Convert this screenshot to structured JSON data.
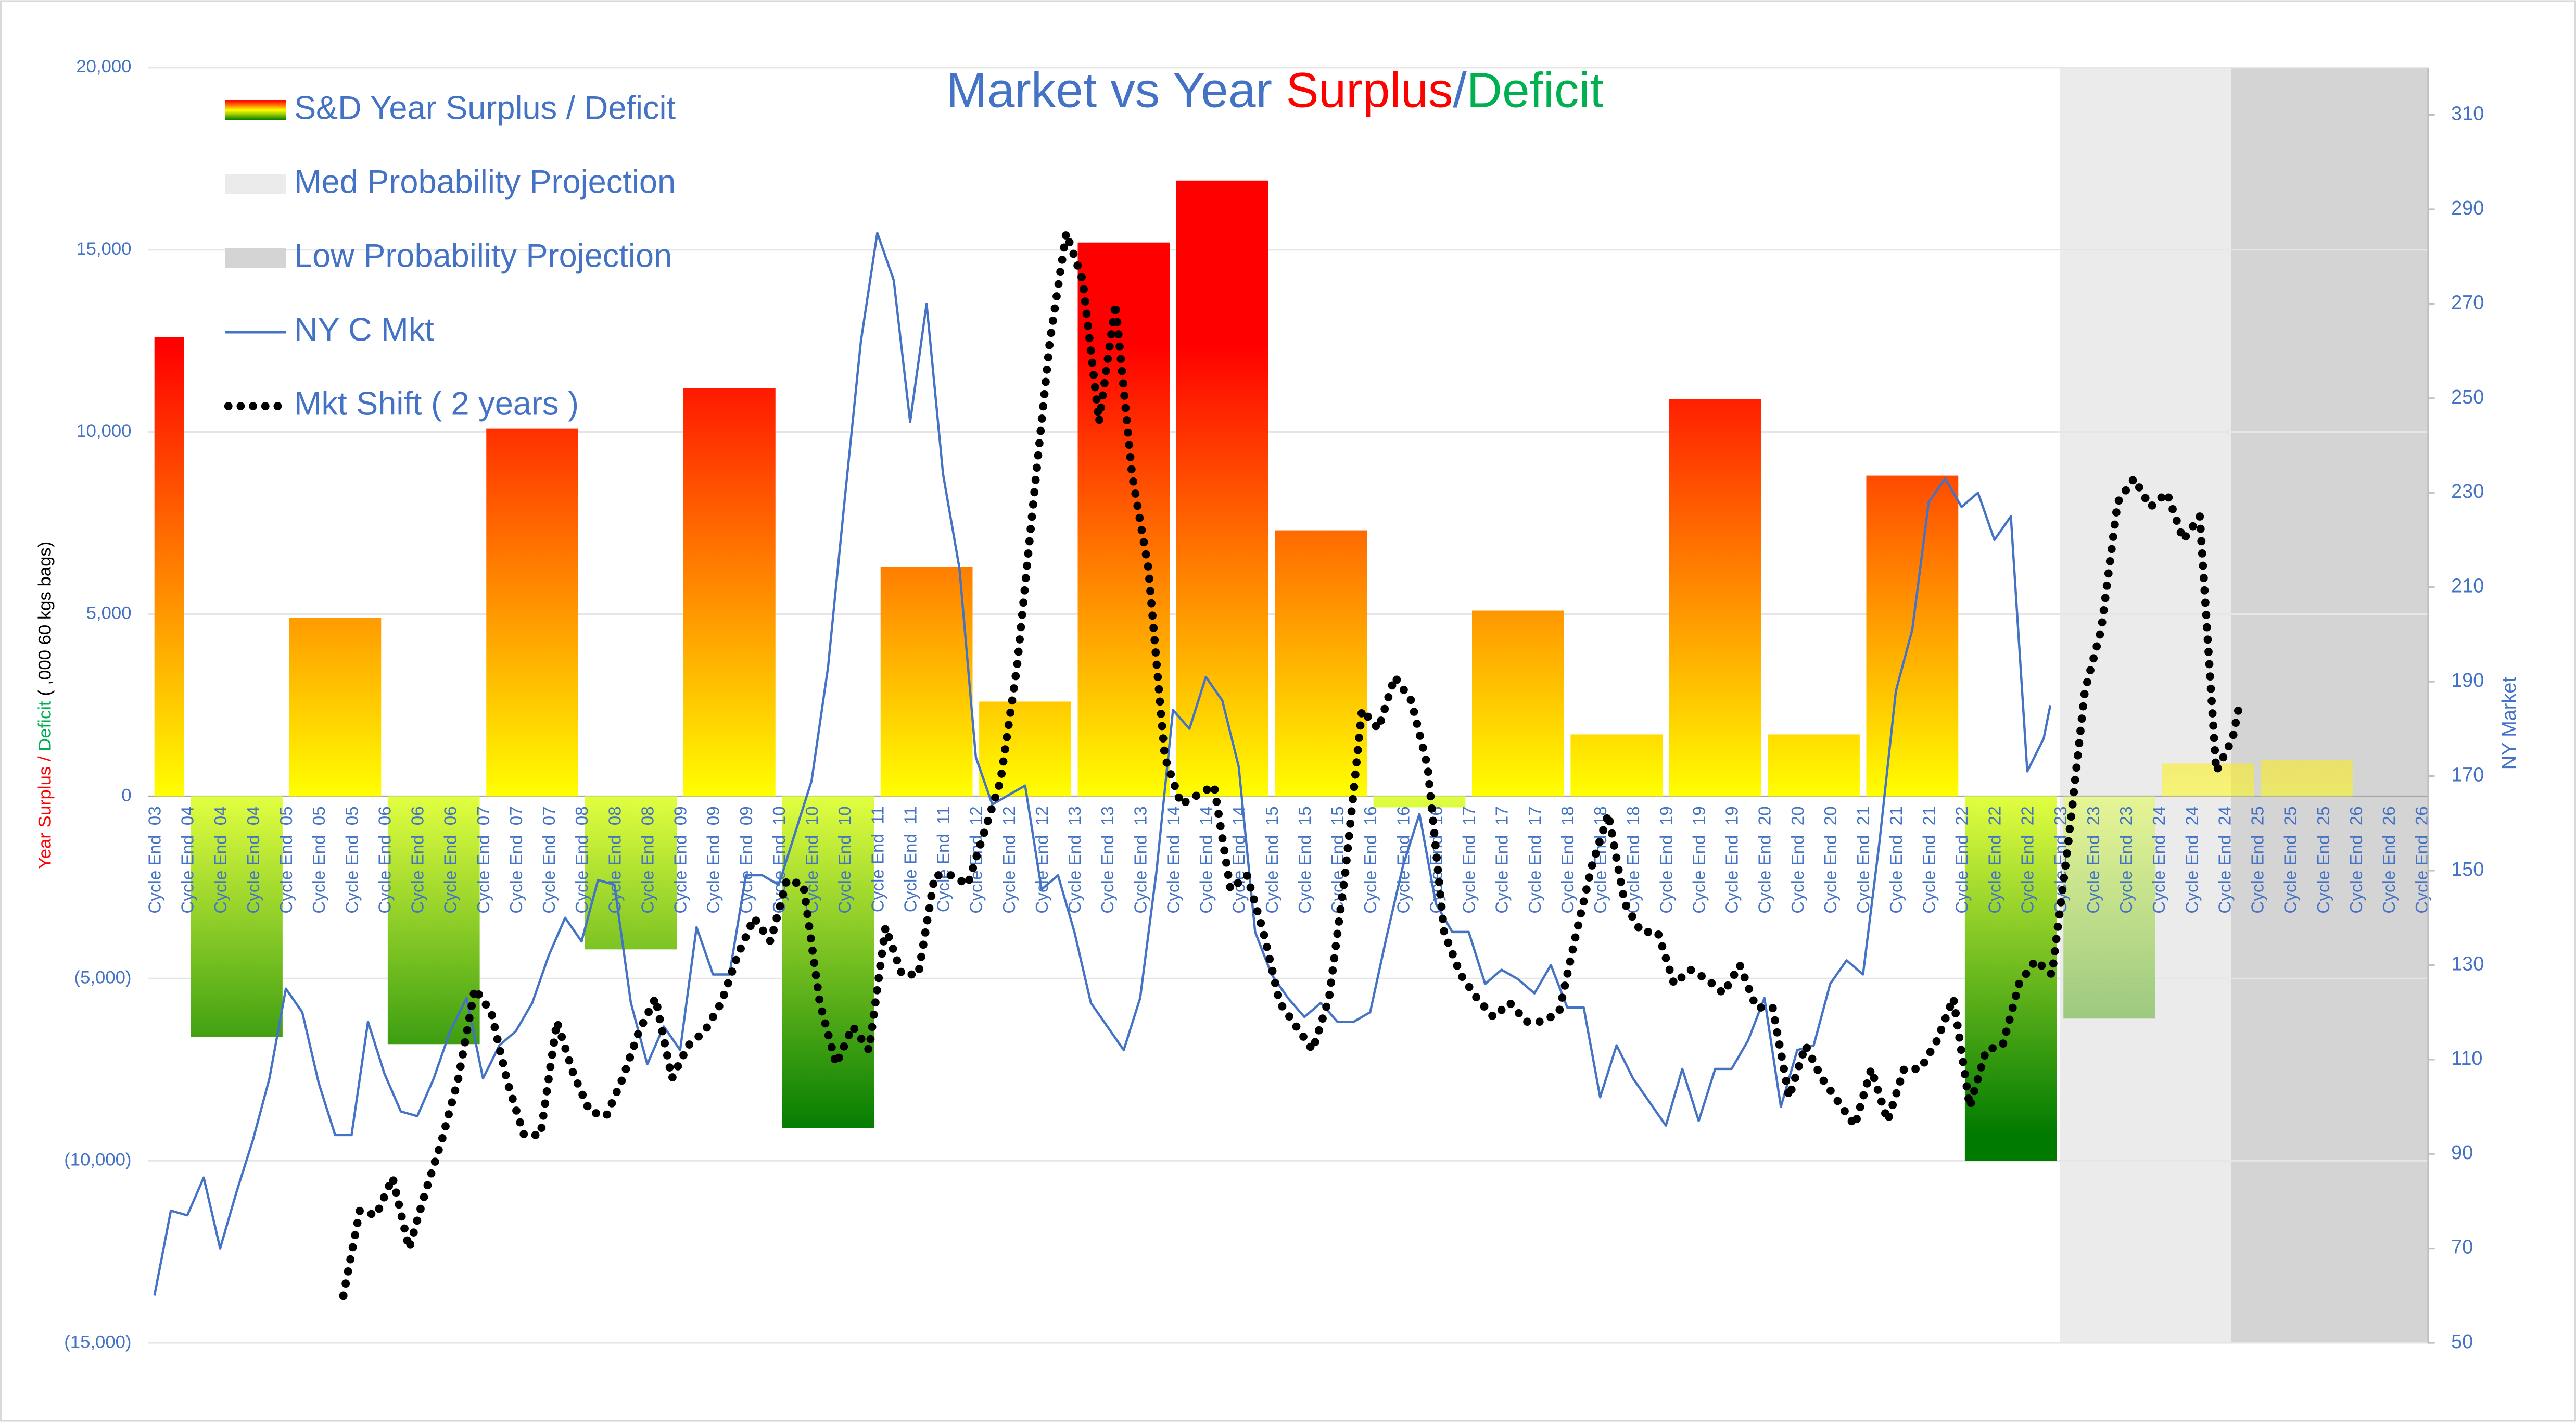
{
  "chart_data": {
    "type": "combo",
    "title_parts": [
      {
        "text": "Market vs Year ",
        "color": "#4472c4"
      },
      {
        "text": "Surplus",
        "color": "#ff0000"
      },
      {
        "text": "/",
        "color": "#4472c4"
      },
      {
        "text": "Deficit",
        "color": "#00b050"
      }
    ],
    "y_label_parts": [
      {
        "text": "Year Surplus / ",
        "color": "#ff0000"
      },
      {
        "text": "Deficit",
        "color": "#00b050"
      },
      {
        "text": " ( ,000 60 kgs bags)",
        "color": "#000000"
      }
    ],
    "y2_label": "NY Market",
    "axis_color": "#4472c4",
    "grid": true,
    "legend": "top-left",
    "categories": [
      "Cycle End  03",
      "Cycle End  04",
      "Cycle End  04",
      "Cycle End  04",
      "Cycle End  05",
      "Cycle End  05",
      "Cycle End  05",
      "Cycle End  06",
      "Cycle End  06",
      "Cycle End  06",
      "Cycle End  07",
      "Cycle End  07",
      "Cycle End  07",
      "Cycle End  08",
      "Cycle End  08",
      "Cycle End  08",
      "Cycle End  09",
      "Cycle End  09",
      "Cycle End  09",
      "Cycle End  10",
      "Cycle End  10",
      "Cycle End  10",
      "Cycle End  11",
      "Cycle End  11",
      "Cycle End  11",
      "Cycle End  12",
      "Cycle End  12",
      "Cycle End  12",
      "Cycle End  13",
      "Cycle End  13",
      "Cycle End  13",
      "Cycle End  14",
      "Cycle End  14",
      "Cycle End  14",
      "Cycle End  15",
      "Cycle End  15",
      "Cycle End  15",
      "Cycle End  16",
      "Cycle End  16",
      "Cycle End  16",
      "Cycle End  17",
      "Cycle End  17",
      "Cycle End  17",
      "Cycle End  18",
      "Cycle End  18",
      "Cycle End  18",
      "Cycle End  19",
      "Cycle End  19",
      "Cycle End  19",
      "Cycle End  20",
      "Cycle End  20",
      "Cycle End  20",
      "Cycle End  21",
      "Cycle End  21",
      "Cycle End  21",
      "Cycle End  22",
      "Cycle End  22",
      "Cycle End  22",
      "Cycle End  23",
      "Cycle End  23",
      "Cycle End  23",
      "Cycle End  24",
      "Cycle End  24",
      "Cycle End  24",
      "Cycle End  25",
      "Cycle End  25",
      "Cycle End  25",
      "Cycle End  26",
      "Cycle End  26",
      "Cycle End  26"
    ],
    "xlim": [
      0,
      69.2
    ],
    "ylim": [
      -15000,
      20000
    ],
    "yticks": [
      {
        "value": -15000,
        "label": "(15,000)"
      },
      {
        "value": -10000,
        "label": "(10,000)"
      },
      {
        "value": -5000,
        "label": "(5,000)"
      },
      0,
      {
        "value": 5000,
        "label": "5,000"
      },
      {
        "value": 10000,
        "label": "10,000"
      },
      {
        "value": 15000,
        "label": "15,000"
      },
      {
        "value": 20000,
        "label": "20,000"
      }
    ],
    "y2lim": [
      50,
      320
    ],
    "y2ticks": [
      50,
      70,
      90,
      110,
      130,
      150,
      170,
      190,
      210,
      230,
      250,
      270,
      290,
      310
    ],
    "bands": [
      {
        "name": "Med Probability Projection",
        "color": "#ebebeb",
        "x": [
          58,
          63.2
        ]
      },
      {
        "name": "Low Probability Projection",
        "color": "#d4d4d4",
        "x": [
          63.2,
          69.2
        ]
      }
    ],
    "bars": {
      "name": "S&D Year Surplus / Deficit",
      "surplus_colors": [
        "#ffff00",
        "#ff0000"
      ],
      "deficit_colors": [
        "#e2ff40",
        "#007a00"
      ],
      "x": [
        [
          0,
          1
        ],
        [
          1,
          4
        ],
        [
          4,
          7
        ],
        [
          7,
          10
        ],
        [
          10,
          13
        ],
        [
          13,
          16
        ],
        [
          16,
          19
        ],
        [
          19,
          22
        ],
        [
          22,
          25
        ],
        [
          25,
          28
        ],
        [
          28,
          31
        ],
        [
          31,
          34
        ],
        [
          34,
          37
        ],
        [
          37,
          40
        ],
        [
          40,
          43
        ],
        [
          43,
          46
        ],
        [
          46,
          49
        ],
        [
          49,
          52
        ],
        [
          52,
          55
        ],
        [
          55,
          58
        ],
        [
          58,
          61
        ],
        [
          61,
          64
        ],
        [
          64,
          67
        ]
      ],
      "values": [
        12600,
        -6600,
        4900,
        -6800,
        10100,
        -4200,
        11200,
        -9100,
        6300,
        2600,
        15200,
        16900,
        7300,
        -300,
        5100,
        1700,
        10900,
        1700,
        8800,
        -10000,
        -6100,
        900,
        1000
      ]
    },
    "series": [
      {
        "name": "NY C Mkt",
        "color": "#4472c4",
        "axis": "y2",
        "style": "line",
        "x": [
          0,
          0.5,
          1,
          1.5,
          2,
          2.5,
          3,
          3.5,
          4,
          4.5,
          5,
          5.5,
          6,
          6.5,
          7,
          7.5,
          8,
          8.5,
          9,
          9.5,
          10,
          10.5,
          11,
          11.5,
          12,
          12.5,
          13,
          13.5,
          14,
          14.5,
          15,
          15.5,
          16,
          16.5,
          17,
          17.5,
          18,
          18.5,
          19,
          19.5,
          20,
          20.5,
          21,
          21.5,
          22,
          22.5,
          23,
          23.5,
          24,
          24.5,
          25,
          25.5,
          26,
          26.5,
          27,
          27.5,
          28,
          28.5,
          29,
          29.5,
          30,
          30.5,
          31,
          31.5,
          32,
          32.5,
          33,
          33.5,
          34,
          34.5,
          35,
          35.5,
          36,
          36.5,
          37,
          37.5,
          38,
          38.5,
          39,
          39.5,
          40,
          40.5,
          41,
          41.5,
          42,
          42.5,
          43,
          43.5,
          44,
          44.5,
          45,
          45.5,
          46,
          46.5,
          47,
          47.5,
          48,
          48.5,
          49,
          49.5,
          50,
          50.5,
          51,
          51.5,
          52,
          52.5,
          53,
          53.5,
          54,
          54.5,
          55,
          55.5,
          56,
          56.5,
          57,
          57.5,
          57.7
        ],
        "values": [
          60,
          78,
          77,
          85,
          70,
          82,
          93,
          106,
          125,
          120,
          105,
          94,
          94,
          118,
          107,
          99,
          98,
          106,
          116,
          123,
          106,
          113,
          116,
          122,
          132,
          140,
          135,
          148,
          147,
          122,
          109,
          117,
          112,
          138,
          128,
          128,
          149,
          149,
          147,
          158,
          169,
          193,
          228,
          262,
          285,
          275,
          245,
          270,
          234,
          214,
          174,
          164,
          166,
          168,
          146,
          149,
          137,
          122,
          117,
          112,
          123,
          150,
          184,
          180,
          191,
          186,
          172,
          137,
          128,
          123,
          119,
          122,
          118,
          118,
          120,
          136,
          151,
          162,
          143,
          137,
          137,
          126,
          129,
          127,
          124,
          130,
          121,
          121,
          102,
          113,
          106,
          101,
          96,
          108,
          97,
          108,
          108,
          114,
          123,
          100,
          112,
          113,
          126,
          131,
          128,
          156,
          188,
          201,
          228,
          233,
          227,
          230,
          220,
          225,
          171,
          178,
          185
        ]
      },
      {
        "name": "Mkt Shift ( 2 years )",
        "color": "#000000",
        "axis": "y2",
        "style": "dots",
        "x": [
          5.75,
          6.25,
          6.75,
          7.25,
          7.75,
          8.25,
          8.75,
          9.25,
          9.75,
          10.25,
          10.75,
          11.25,
          11.75,
          12.25,
          12.75,
          13.25,
          13.75,
          14.25,
          14.75,
          15.25,
          15.75,
          16.25,
          16.75,
          17.25,
          17.75,
          18.25,
          18.75,
          19.25,
          19.75,
          20.25,
          20.75,
          21.25,
          21.75,
          22.25,
          22.75,
          23.25,
          23.75,
          24.25,
          24.75,
          25.25,
          25.75,
          26.25,
          26.75,
          27.25,
          27.75,
          28.25,
          28.75,
          29.25,
          29.75,
          30.25,
          30.75,
          31.25,
          31.75,
          32.25,
          32.75,
          33.25,
          33.75,
          34.25,
          34.75,
          35.25,
          35.75,
          36.25,
          36.75,
          37.25,
          37.75,
          38.25,
          38.75,
          39.25,
          39.75,
          40.25,
          40.75,
          41.25,
          41.75,
          42.25,
          42.75,
          43.25,
          43.75,
          44.25,
          44.75,
          45.25,
          45.75,
          46.25,
          46.75,
          47.25,
          47.75,
          48.25,
          48.75,
          49.25,
          49.75,
          50.25,
          50.75,
          51.25,
          51.75,
          52.25,
          52.75,
          53.25,
          53.75,
          54.25,
          54.75,
          55.25,
          55.75,
          56.25,
          56.75,
          57.25,
          57.75,
          58.25,
          58.75,
          59.25,
          59.75,
          60.25,
          60.75,
          61.25,
          61.75,
          62.25,
          62.75,
          63.25,
          63.45
        ],
        "values": [
          60,
          78,
          77,
          85,
          70,
          82,
          93,
          106,
          125,
          120,
          105,
          94,
          94,
          118,
          107,
          99,
          98,
          106,
          116,
          123,
          106,
          113,
          116,
          122,
          132,
          140,
          135,
          148,
          147,
          122,
          109,
          117,
          112,
          138,
          128,
          128,
          149,
          149,
          147,
          158,
          169,
          193,
          228,
          262,
          285,
          275,
          245,
          270,
          234,
          214,
          174,
          164,
          166,
          168,
          146,
          149,
          137,
          122,
          117,
          112,
          123,
          150,
          184,
          180,
          191,
          186,
          172,
          137,
          128,
          123,
          119,
          122,
          118,
          118,
          120,
          136,
          151,
          162,
          143,
          137,
          137,
          126,
          129,
          127,
          124,
          130,
          121,
          121,
          102,
          113,
          106,
          101,
          96,
          108,
          97,
          108,
          108,
          114,
          123,
          100,
          112,
          113,
          126,
          131,
          128,
          156,
          188,
          201,
          228,
          233,
          227,
          230,
          220,
          225,
          171,
          178,
          185
        ]
      }
    ]
  }
}
